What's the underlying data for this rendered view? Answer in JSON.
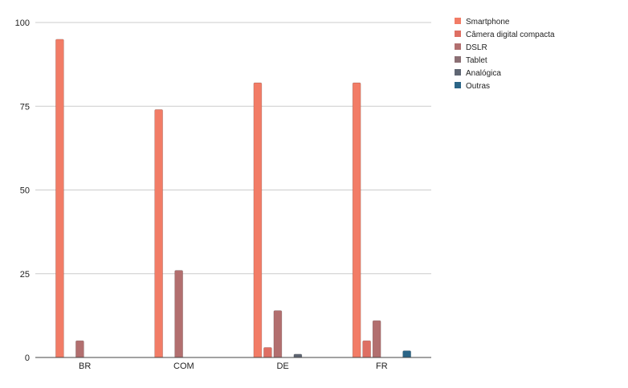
{
  "chart_data": {
    "type": "bar",
    "title": "",
    "xlabel": "",
    "ylabel": "",
    "ylim": [
      0,
      100
    ],
    "yticks": [
      0,
      25,
      50,
      75,
      100
    ],
    "grid": true,
    "legend_position": "right",
    "categories": [
      "BR",
      "COM",
      "DE",
      "FR"
    ],
    "series": [
      {
        "name": "Smartphone",
        "color": "#f27c66",
        "values": [
          95,
          74,
          82,
          82
        ]
      },
      {
        "name": "Câmera digital compacta",
        "color": "#de6f63",
        "values": [
          0,
          0,
          3,
          5
        ]
      },
      {
        "name": "DSLR",
        "color": "#b26f6f",
        "values": [
          5,
          26,
          14,
          11
        ]
      },
      {
        "name": "Tablet",
        "color": "#8b6f74",
        "values": [
          0,
          0,
          0,
          0
        ]
      },
      {
        "name": "Analógica",
        "color": "#5f6673",
        "values": [
          0,
          0,
          1,
          0
        ]
      },
      {
        "name": "Outras",
        "color": "#2b6587",
        "values": [
          0,
          0,
          0,
          2
        ]
      }
    ]
  }
}
